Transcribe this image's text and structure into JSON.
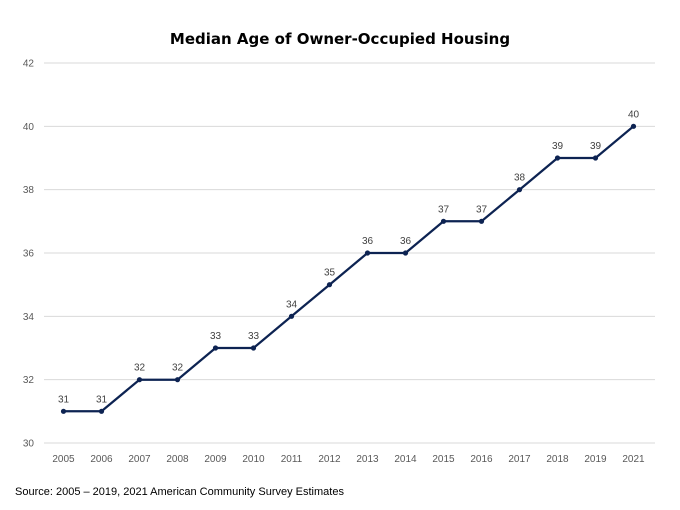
{
  "chart_data": {
    "type": "line",
    "title": "Median Age of Owner-Occupied Housing",
    "xlabel": "",
    "ylabel": "",
    "categories": [
      "2005",
      "2006",
      "2007",
      "2008",
      "2009",
      "2010",
      "2011",
      "2012",
      "2013",
      "2014",
      "2015",
      "2016",
      "2017",
      "2018",
      "2019",
      "2021"
    ],
    "series": [
      {
        "values": [
          31,
          31,
          32,
          32,
          33,
          33,
          34,
          35,
          36,
          36,
          37,
          37,
          38,
          39,
          39,
          40
        ]
      }
    ],
    "ylim": [
      30,
      42
    ],
    "yticks": [
      "30",
      "32",
      "34",
      "36",
      "38",
      "40",
      "42"
    ],
    "grid": "horizontal",
    "data_labels": true,
    "line_color": "#0d2352",
    "grid_color": "#d9d9d9",
    "legend": "none"
  },
  "source": "Source: 2005 – 2019, 2021 American Community Survey Estimates"
}
